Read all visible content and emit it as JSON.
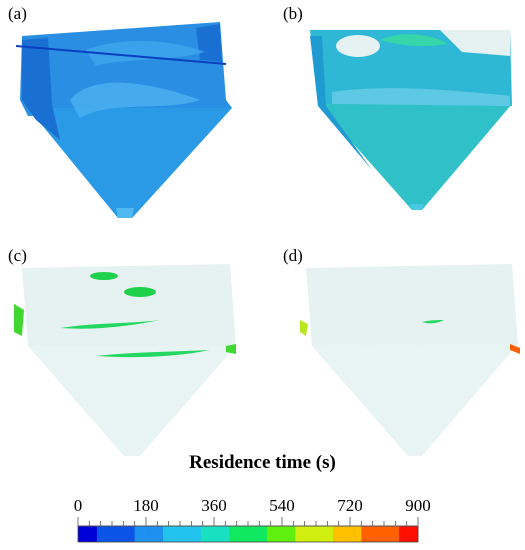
{
  "panels": [
    {
      "label": "(a)"
    },
    {
      "label": "(b)"
    },
    {
      "label": "(c)"
    },
    {
      "label": "(d)"
    }
  ],
  "legend": {
    "title": "Residence time (s)",
    "tick_labels": [
      "0",
      "180",
      "360",
      "540",
      "720",
      "900"
    ],
    "range": [
      0,
      900
    ],
    "colormap": [
      "#0000d8",
      "#0a55e8",
      "#1e90f0",
      "#22c4ee",
      "#18e0c0",
      "#10e860",
      "#60f010",
      "#d0ee10",
      "#ffc000",
      "#ff6000",
      "#ff1000"
    ]
  },
  "colors": {
    "panel_a_fill": "#2a8fe2",
    "panel_a_shade": "#1a6fd2",
    "panel_b_fill": "#2fb8d6",
    "panel_b_shade": "#1e9bd0",
    "pale_fill": "#e6f2f2",
    "green_mark": "#1fd14a"
  }
}
